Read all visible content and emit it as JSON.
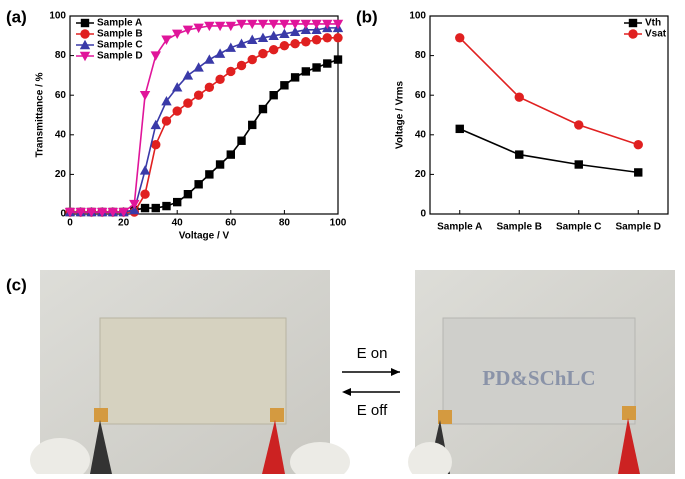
{
  "panel_labels": [
    "(a)",
    "(b)",
    "(c)"
  ],
  "chart_data": [
    {
      "type": "line",
      "xlabel": "Voltage / V",
      "ylabel": "Transmittance / %",
      "x": [
        0,
        4,
        8,
        12,
        16,
        20,
        24,
        28,
        32,
        36,
        40,
        44,
        48,
        52,
        56,
        60,
        64,
        68,
        72,
        76,
        80,
        84,
        88,
        92,
        96,
        100
      ],
      "xlim": [
        0,
        100
      ],
      "xticks": [
        0,
        20,
        40,
        60,
        80,
        100
      ],
      "ylim": [
        0,
        100
      ],
      "yticks": [
        0,
        20,
        40,
        60,
        80,
        100
      ],
      "legend": "top-left",
      "series": [
        {
          "name": "Sample A",
          "color": "#000000",
          "marker": "square",
          "values": [
            1,
            1,
            1,
            1,
            1,
            1,
            2,
            3,
            3,
            4,
            6,
            10,
            15,
            20,
            25,
            30,
            37,
            45,
            53,
            60,
            65,
            69,
            72,
            74,
            76,
            78
          ]
        },
        {
          "name": "Sample B",
          "color": "#e02020",
          "marker": "circle",
          "values": [
            1,
            1,
            1,
            1,
            1,
            1,
            1,
            10,
            35,
            47,
            52,
            56,
            60,
            64,
            68,
            72,
            75,
            78,
            81,
            83,
            85,
            86,
            87,
            88,
            89,
            89
          ]
        },
        {
          "name": "Sample C",
          "color": "#3a3aa8",
          "marker": "triangle",
          "values": [
            1,
            1,
            1,
            1,
            1,
            1,
            2,
            22,
            45,
            57,
            64,
            70,
            74,
            78,
            81,
            84,
            86,
            88,
            89,
            90,
            91,
            92,
            93,
            93,
            94,
            94
          ]
        },
        {
          "name": "Sample D",
          "color": "#e0159a",
          "marker": "triangle-down",
          "values": [
            1,
            1,
            1,
            1,
            1,
            1,
            5,
            60,
            80,
            88,
            91,
            93,
            94,
            95,
            95,
            95,
            96,
            96,
            96,
            96,
            96,
            96,
            96,
            96,
            96,
            96
          ]
        }
      ]
    },
    {
      "type": "line",
      "ylabel": "Voltage / Vrms",
      "categories": [
        "Sample A",
        "Sample B",
        "Sample C",
        "Sample D"
      ],
      "ylim": [
        0,
        100
      ],
      "yticks": [
        0,
        20,
        40,
        60,
        80,
        100
      ],
      "legend": "top-right",
      "series": [
        {
          "name": "Vth",
          "color": "#000000",
          "marker": "square",
          "values": [
            43,
            30,
            25,
            21
          ]
        },
        {
          "name": "Vsat",
          "color": "#e02020",
          "marker": "circle",
          "values": [
            89,
            59,
            45,
            35
          ]
        }
      ]
    }
  ],
  "photo": {
    "arrow_top": "E on",
    "arrow_bottom": "E off",
    "film_text": "PD&SChLC"
  }
}
